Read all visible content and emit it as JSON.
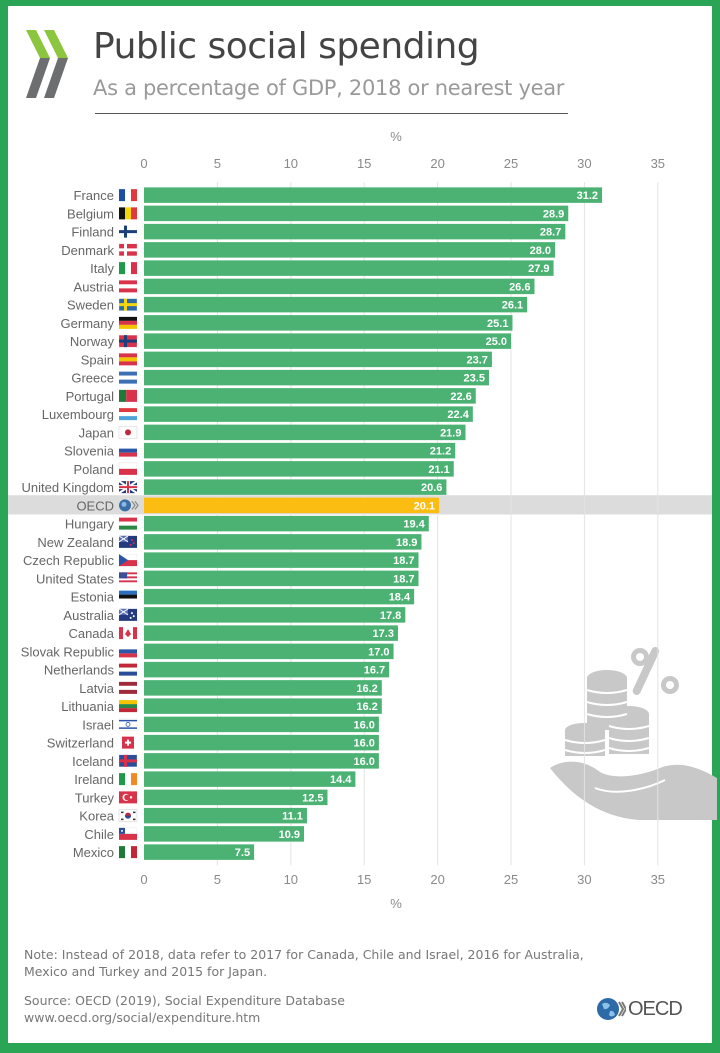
{
  "header": {
    "title": "Public social spending",
    "subtitle": "As a percentage of GDP, 2018 or nearest year"
  },
  "chart_data": {
    "type": "bar",
    "orientation": "horizontal",
    "title": "Public social spending",
    "subtitle": "As a percentage of GDP, 2018 or nearest year",
    "xlabel": "%",
    "xlim": [
      0,
      35
    ],
    "xticks": [
      0,
      5,
      10,
      15,
      20,
      25,
      30,
      35
    ],
    "grid": true,
    "categories": [
      "France",
      "Belgium",
      "Finland",
      "Denmark",
      "Italy",
      "Austria",
      "Sweden",
      "Germany",
      "Norway",
      "Spain",
      "Greece",
      "Portugal",
      "Luxembourg",
      "Japan",
      "Slovenia",
      "Poland",
      "United Kingdom",
      "OECD",
      "Hungary",
      "New Zealand",
      "Czech Republic",
      "United States",
      "Estonia",
      "Australia",
      "Canada",
      "Slovak Republic",
      "Netherlands",
      "Latvia",
      "Lithuania",
      "Israel",
      "Switzerland",
      "Iceland",
      "Ireland",
      "Turkey",
      "Korea",
      "Chile",
      "Mexico"
    ],
    "values": [
      31.2,
      28.9,
      28.7,
      28.0,
      27.9,
      26.6,
      26.1,
      25.1,
      25.0,
      23.7,
      23.5,
      22.6,
      22.4,
      21.9,
      21.2,
      21.1,
      20.6,
      20.1,
      19.4,
      18.9,
      18.7,
      18.7,
      18.4,
      17.8,
      17.3,
      17.0,
      16.7,
      16.2,
      16.2,
      16.0,
      16.0,
      16.0,
      14.4,
      12.5,
      11.1,
      10.9,
      7.5
    ],
    "value_labels": [
      "31.2",
      "28.9",
      "28.7",
      "28.0",
      "27.9",
      "26.6",
      "26.1",
      "25.1",
      "25.0",
      "23.7",
      "23.5",
      "22.6",
      "22.4",
      "21.9",
      "21.2",
      "21.1",
      "20.6",
      "20.1",
      "19.4",
      "18.9",
      "18.7",
      "18.7",
      "18.4",
      "17.8",
      "17.3",
      "17.0",
      "16.7",
      "16.2",
      "16.2",
      "16.0",
      "16.0",
      "16.0",
      "14.4",
      "12.5",
      "11.1",
      "10.9",
      "7.5"
    ],
    "highlight": "OECD",
    "colors": {
      "bar": "#4cb274",
      "highlight": "#fbbd11",
      "highlight_row": "#dcdcdc",
      "grid": "#e3e3e3"
    }
  },
  "flags": {
    "France": [
      "v",
      "#1d4fa0",
      "#ffffff",
      "#e0393e"
    ],
    "Belgium": [
      "v",
      "#111111",
      "#f5d50c",
      "#e0393e"
    ],
    "Finland": [
      "nordic",
      "#ffffff",
      "#1a3f7a"
    ],
    "Denmark": [
      "nordic",
      "#d8334a",
      "#ffffff"
    ],
    "Italy": [
      "v",
      "#1f9a48",
      "#ffffff",
      "#d8334a"
    ],
    "Austria": [
      "h",
      "#d8334a",
      "#ffffff",
      "#d8334a"
    ],
    "Sweden": [
      "nordic",
      "#2f6aa8",
      "#f5d50c"
    ],
    "Germany": [
      "h",
      "#111111",
      "#d8334a",
      "#f5c400"
    ],
    "Norway": [
      "nordic",
      "#d8334a",
      "#1a3f7a"
    ],
    "Spain": [
      "h",
      "#d8334a",
      "#f5c400",
      "#d8334a"
    ],
    "Greece": [
      "h",
      "#3c6fb5",
      "#ffffff",
      "#3c6fb5"
    ],
    "Portugal": [
      "v2",
      "#1f7a3a",
      "#d8334a"
    ],
    "Luxembourg": [
      "h",
      "#e0393e",
      "#ffffff",
      "#4fa3dc"
    ],
    "Japan": [
      "dot",
      "#ffffff",
      "#c0283a"
    ],
    "Slovenia": [
      "h",
      "#ffffff",
      "#2a55a8",
      "#d8334a"
    ],
    "Poland": [
      "h2",
      "#ffffff",
      "#d8334a"
    ],
    "United Kingdom": [
      "uk",
      "#243b80",
      "#d8334a"
    ],
    "OECD": [
      "globe",
      "#3a6ea8",
      "#8bb7e0"
    ],
    "Hungary": [
      "h",
      "#d8334a",
      "#ffffff",
      "#2a8a45"
    ],
    "New Zealand": [
      "ensign",
      "#243b80",
      "#d8334a"
    ],
    "Czech Republic": [
      "czech",
      "#ffffff",
      "#d8334a",
      "#2a55a8"
    ],
    "United States": [
      "us",
      "#d8334a",
      "#ffffff",
      "#3c4f9a"
    ],
    "Estonia": [
      "h",
      "#2a6fc0",
      "#111111",
      "#ffffff"
    ],
    "Australia": [
      "ensign",
      "#243b80",
      "#ffffff"
    ],
    "Canada": [
      "canada",
      "#d8334a",
      "#ffffff"
    ],
    "Slovak Republic": [
      "h",
      "#ffffff",
      "#2a55a8",
      "#d8334a"
    ],
    "Netherlands": [
      "h",
      "#c0283a",
      "#ffffff",
      "#2a4e9a"
    ],
    "Latvia": [
      "h",
      "#9e2a3a",
      "#ffffff",
      "#9e2a3a"
    ],
    "Lithuania": [
      "h",
      "#f5c400",
      "#2a8a45",
      "#c0283a"
    ],
    "Israel": [
      "israel",
      "#ffffff",
      "#2a55a8"
    ],
    "Switzerland": [
      "swiss",
      "#d8334a",
      "#ffffff"
    ],
    "Iceland": [
      "nordic",
      "#2a4e9a",
      "#d8334a"
    ],
    "Ireland": [
      "v",
      "#1f9a48",
      "#ffffff",
      "#f08a24"
    ],
    "Turkey": [
      "turkey",
      "#d8334a",
      "#ffffff"
    ],
    "Korea": [
      "korea",
      "#ffffff",
      "#c0283a"
    ],
    "Chile": [
      "chile",
      "#ffffff",
      "#d8334a",
      "#2a4e9a"
    ],
    "Mexico": [
      "v",
      "#1f7a3a",
      "#ffffff",
      "#c0283a"
    ]
  },
  "footer": {
    "note": "Note: Instead of 2018, data refer to 2017 for Canada, Chile and Israel, 2016 for Australia, Mexico and Turkey and 2015 for Japan.",
    "source_line1": "Source: OECD (2019), Social Expenditure Database",
    "source_line2": "www.oecd.org/social/expenditure.htm",
    "logo_text": "OECD"
  },
  "illustration": "hand-with-coins-and-percent-icon"
}
